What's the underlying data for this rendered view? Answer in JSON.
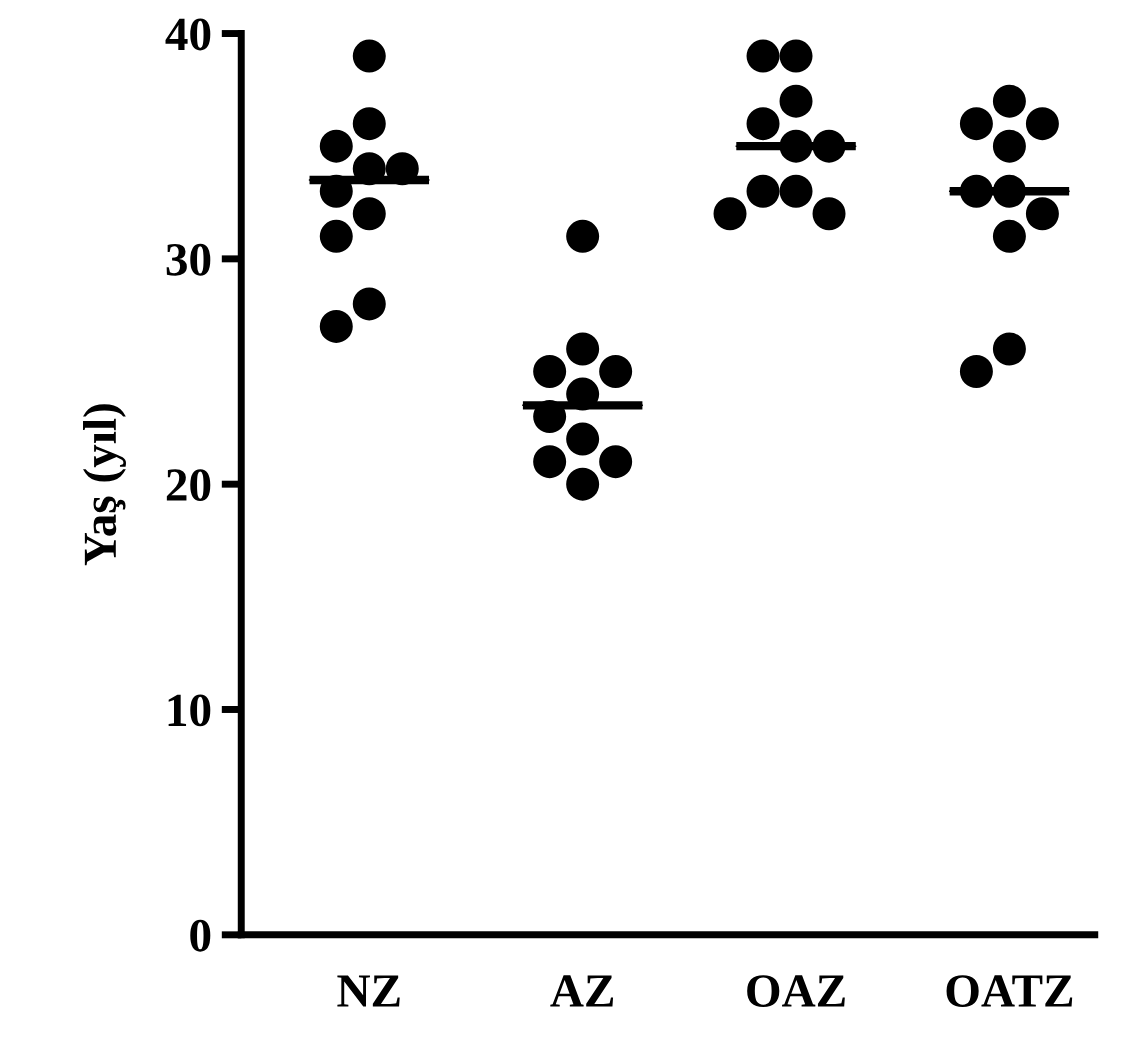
{
  "chart_data": {
    "type": "scatter",
    "ylabel": "Yaş (yıl)",
    "categories": [
      "NZ",
      "AZ",
      "OAZ",
      "OATZ"
    ],
    "ylim": [
      0,
      40
    ],
    "yticks": [
      0,
      10,
      20,
      30,
      40
    ],
    "grid": false,
    "marker": "circle",
    "series": [
      {
        "type": "scatter",
        "color": "#000000",
        "x": [
          "NZ",
          "NZ",
          "NZ",
          "NZ",
          "NZ",
          "NZ",
          "NZ",
          "NZ",
          "NZ",
          "NZ",
          "AZ",
          "AZ",
          "AZ",
          "AZ",
          "AZ",
          "AZ",
          "AZ",
          "AZ",
          "AZ",
          "AZ",
          "OAZ",
          "OAZ",
          "OAZ",
          "OAZ",
          "OAZ",
          "OAZ",
          "OAZ",
          "OAZ",
          "OAZ",
          "OAZ",
          "OATZ",
          "OATZ",
          "OATZ",
          "OATZ",
          "OATZ",
          "OATZ",
          "OATZ",
          "OATZ",
          "OATZ",
          "OATZ"
        ],
        "values": [
          39,
          36,
          35,
          34,
          34,
          33,
          32,
          31,
          28,
          27,
          31,
          26,
          25,
          25,
          24,
          23,
          22,
          21,
          21,
          20,
          39,
          39,
          37,
          36,
          35,
          35,
          33,
          33,
          32,
          32,
          37,
          36,
          36,
          35,
          33,
          33,
          32,
          31,
          26,
          25
        ]
      },
      {
        "type": "box",
        "color": "#000000",
        "boxes": [
          {
            "low": 33.5,
            "q1": 33.5,
            "median": 33.5,
            "q3": 33.5,
            "high": 33.5
          },
          {
            "low": 23.5,
            "q1": 23.5,
            "median": 23.5,
            "q3": 23.5,
            "high": 23.5
          },
          {
            "low": 35,
            "q1": 35,
            "median": 35,
            "q3": 35,
            "high": 35
          },
          {
            "low": 33,
            "q1": 33,
            "median": 33,
            "q3": 33,
            "high": 33
          }
        ]
      }
    ]
  }
}
